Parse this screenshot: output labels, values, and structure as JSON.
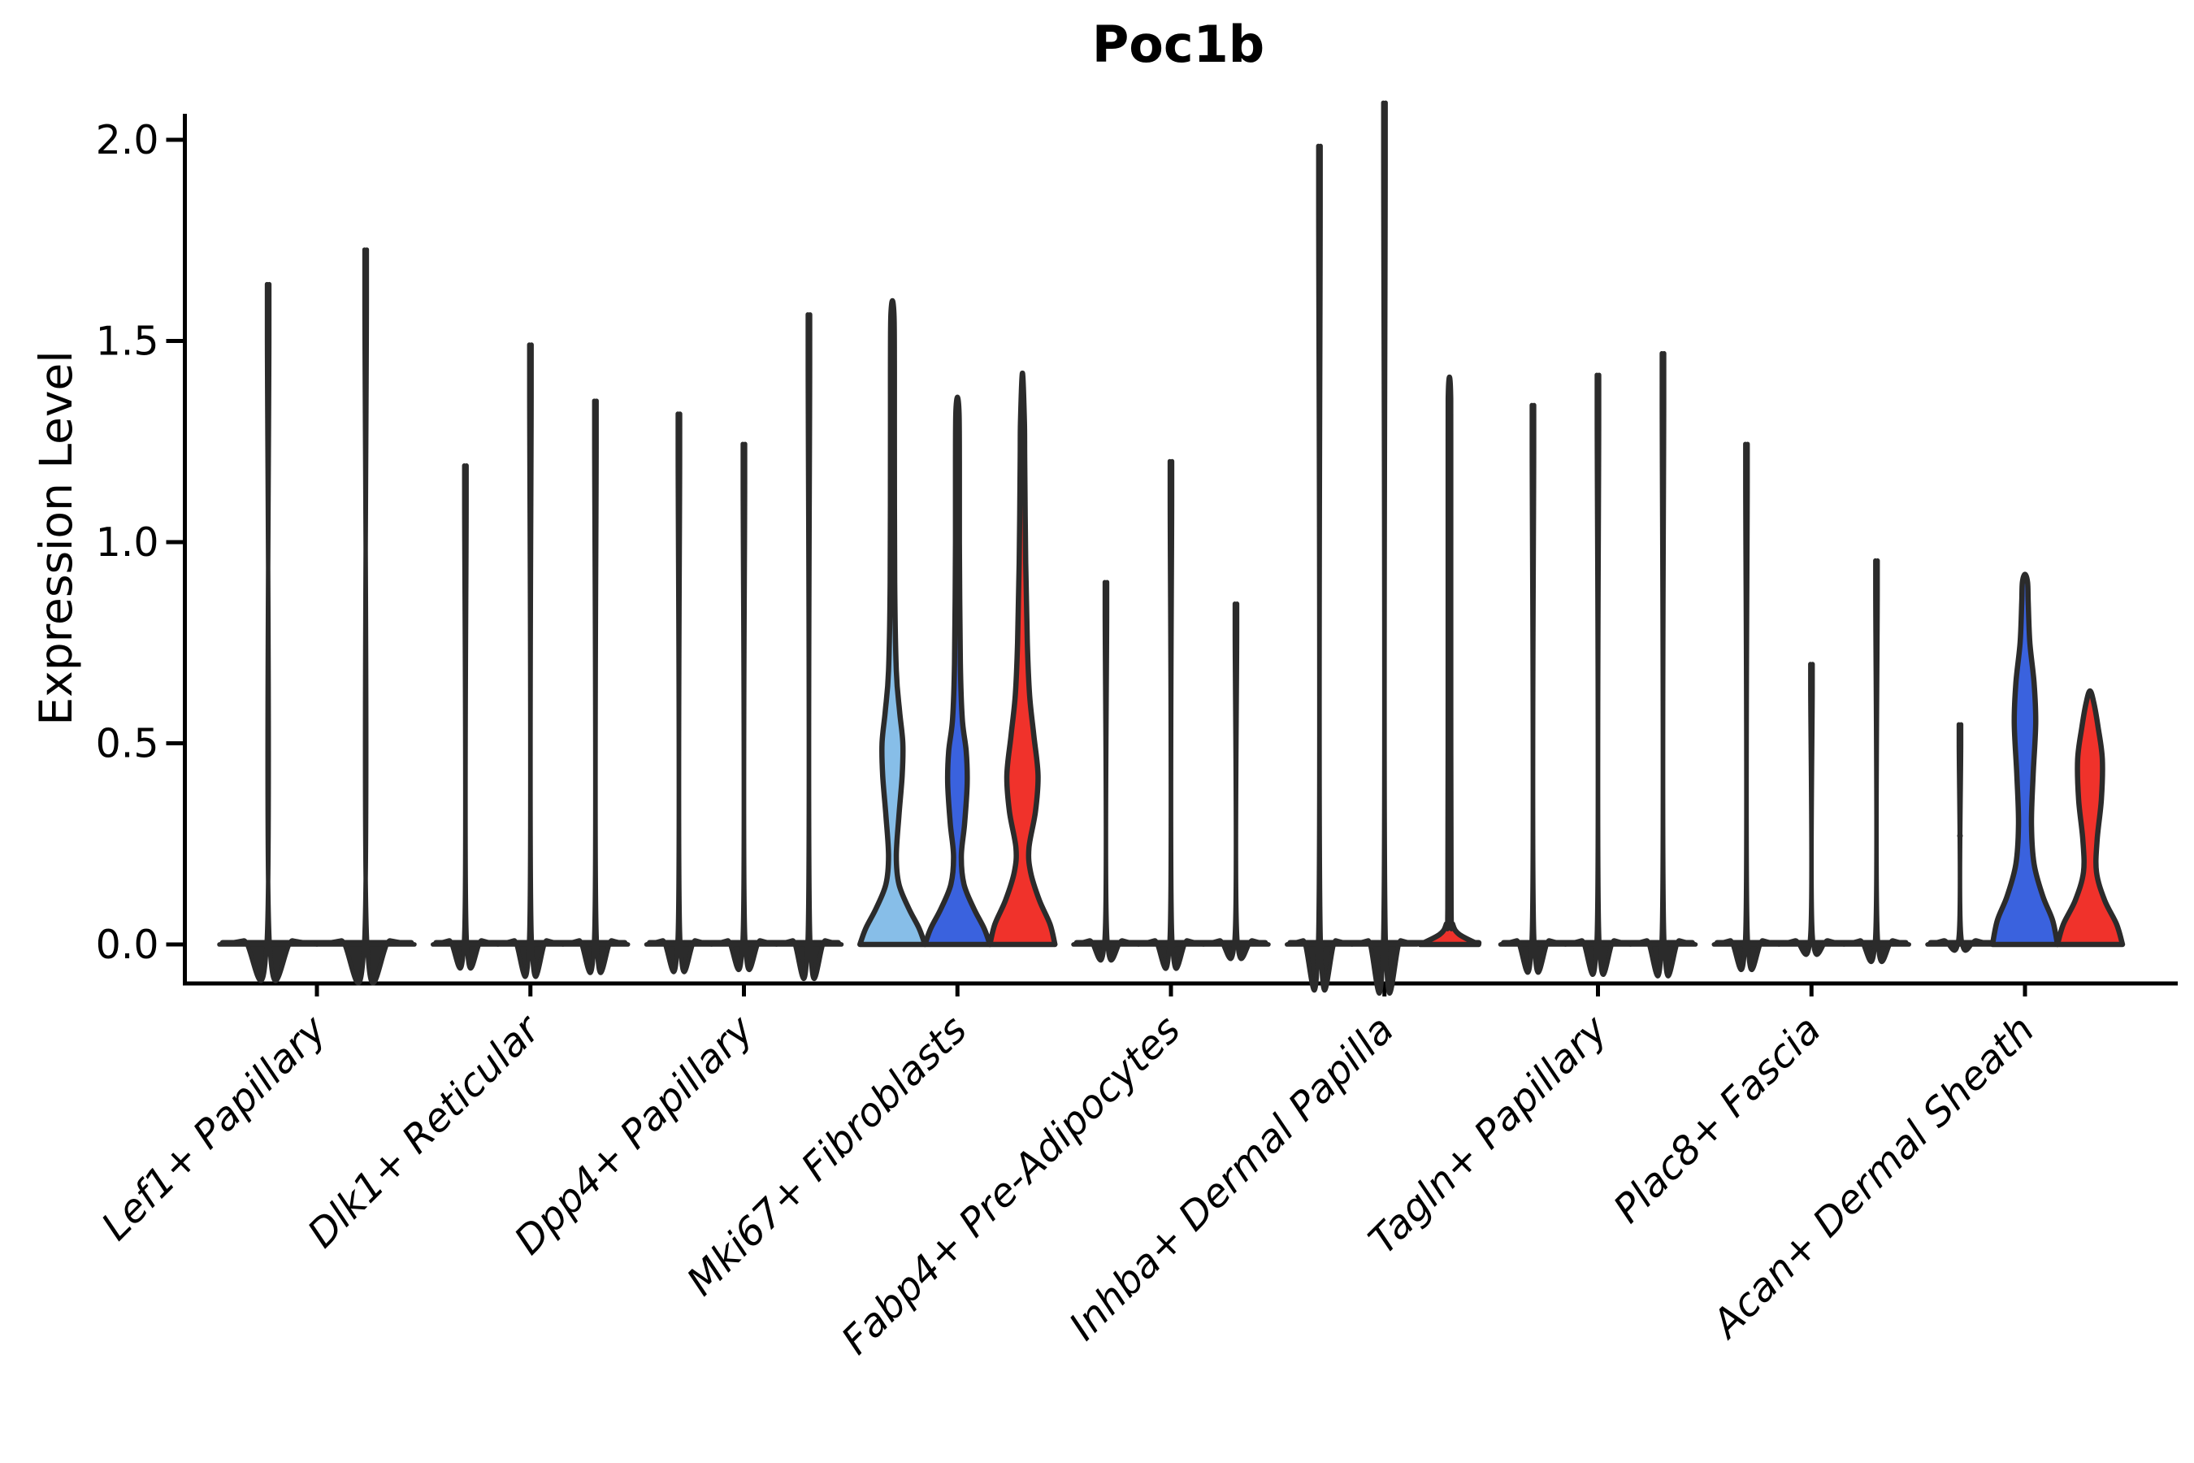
{
  "window": {
    "title": "Poc1b violin plot"
  },
  "chart_data": {
    "type": "violin",
    "title": "Poc1b",
    "xlabel": "",
    "ylabel": "Expression Level",
    "ylim": [
      0,
      2.05
    ],
    "yticks": [
      0.0,
      0.5,
      1.0,
      1.5,
      2.0
    ],
    "ytick_labels": [
      "0.0",
      "0.5",
      "1.0",
      "1.5",
      "2.0"
    ],
    "grid": false,
    "legend_position": "none",
    "x_tick_rotation_deg": 45,
    "colors": {
      "background": "#ffffff",
      "axis": "#000000",
      "outline": "#2b2b2b",
      "split_light_blue": "#87BEE8",
      "split_blue": "#3A62DE",
      "split_red": "#F0322B"
    },
    "categories": [
      {
        "label": "Lef1+ Papillary",
        "violins": [
          {
            "shape": "spike",
            "max": 1.56
          },
          {
            "shape": "spike",
            "max": 1.64
          }
        ]
      },
      {
        "label": "Dlk1+ Reticular",
        "violins": [
          {
            "shape": "spike",
            "max": 1.14
          },
          {
            "shape": "spike",
            "max": 1.42
          },
          {
            "shape": "spike",
            "max": 1.29
          }
        ]
      },
      {
        "label": "Dpp4+ Papillary",
        "violins": [
          {
            "shape": "spike",
            "max": 1.26
          },
          {
            "shape": "spike",
            "max": 1.19
          },
          {
            "shape": "spike",
            "max": 1.49
          }
        ]
      },
      {
        "label": "Mki67+ Fibroblasts",
        "violins": [
          {
            "shape": "shaped",
            "max": 1.6,
            "color": "split_light_blue",
            "profile": [
              [
                0,
                1.0
              ],
              [
                0.04,
                0.82
              ],
              [
                0.09,
                0.5
              ],
              [
                0.15,
                0.2
              ],
              [
                0.22,
                0.12
              ],
              [
                0.32,
                0.2
              ],
              [
                0.42,
                0.3
              ],
              [
                0.5,
                0.32
              ],
              [
                0.58,
                0.22
              ],
              [
                0.68,
                0.12
              ],
              [
                0.9,
                0.07
              ],
              [
                1.3,
                0.06
              ],
              [
                1.45,
                0.06
              ],
              [
                1.56,
                0.05
              ],
              [
                1.6,
                0
              ]
            ]
          },
          {
            "shape": "shaped",
            "max": 1.36,
            "color": "split_blue",
            "profile": [
              [
                0,
                1.0
              ],
              [
                0.04,
                0.82
              ],
              [
                0.09,
                0.5
              ],
              [
                0.15,
                0.2
              ],
              [
                0.22,
                0.12
              ],
              [
                0.3,
                0.22
              ],
              [
                0.4,
                0.3
              ],
              [
                0.48,
                0.27
              ],
              [
                0.56,
                0.15
              ],
              [
                0.7,
                0.09
              ],
              [
                1.0,
                0.06
              ],
              [
                1.2,
                0.06
              ],
              [
                1.32,
                0.05
              ],
              [
                1.36,
                0
              ]
            ]
          },
          {
            "shape": "shaped",
            "max": 1.42,
            "color": "split_red",
            "profile": [
              [
                0,
                1.0
              ],
              [
                0.05,
                0.85
              ],
              [
                0.11,
                0.52
              ],
              [
                0.18,
                0.25
              ],
              [
                0.24,
                0.2
              ],
              [
                0.33,
                0.4
              ],
              [
                0.42,
                0.48
              ],
              [
                0.52,
                0.35
              ],
              [
                0.62,
                0.22
              ],
              [
                0.75,
                0.15
              ],
              [
                0.95,
                0.1
              ],
              [
                1.2,
                0.07
              ],
              [
                1.3,
                0.06
              ],
              [
                1.42,
                0
              ]
            ]
          }
        ]
      },
      {
        "label": "Fabp4+ Pre-Adipocytes",
        "violins": [
          {
            "shape": "spike",
            "max": 0.87
          },
          {
            "shape": "spike",
            "max": 1.15
          },
          {
            "shape": "spike",
            "max": 0.82
          }
        ]
      },
      {
        "label": "Inhba+ Dermal Papilla",
        "violins": [
          {
            "shape": "spike",
            "max": 1.88
          },
          {
            "shape": "spike",
            "max": 1.98
          },
          {
            "shape": "shaped",
            "max": 1.41,
            "color": "split_red",
            "profile": [
              [
                0,
                0.9
              ],
              [
                0.025,
                0.3
              ],
              [
                0.05,
                0.1
              ],
              [
                0.09,
                0.05
              ],
              [
                0.6,
                0.04
              ],
              [
                1.25,
                0.04
              ],
              [
                1.37,
                0.035
              ],
              [
                1.41,
                0
              ]
            ]
          }
        ]
      },
      {
        "label": "Tagln+ Papillary",
        "violins": [
          {
            "shape": "spike",
            "max": 1.28
          },
          {
            "shape": "spike",
            "max": 1.35
          },
          {
            "shape": "spike",
            "max": 1.4
          }
        ]
      },
      {
        "label": "Plac8+ Fascia",
        "violins": [
          {
            "shape": "spike",
            "max": 1.19
          },
          {
            "shape": "spike",
            "max": 0.68
          },
          {
            "shape": "spike",
            "max": 0.92
          }
        ]
      },
      {
        "label": "Acan+ Dermal Sheath",
        "violins": [
          {
            "shape": "spike",
            "max": 0.54,
            "points": [
              0.27,
              0.37,
              0.44,
              0.5,
              0.54
            ]
          },
          {
            "shape": "shaped",
            "max": 0.92,
            "color": "split_blue",
            "profile": [
              [
                0,
                1.0
              ],
              [
                0.06,
                0.85
              ],
              [
                0.12,
                0.55
              ],
              [
                0.2,
                0.28
              ],
              [
                0.3,
                0.2
              ],
              [
                0.42,
                0.25
              ],
              [
                0.55,
                0.33
              ],
              [
                0.65,
                0.28
              ],
              [
                0.75,
                0.15
              ],
              [
                0.85,
                0.1
              ],
              [
                0.9,
                0.08
              ],
              [
                0.92,
                0
              ]
            ]
          },
          {
            "shape": "shaped",
            "max": 0.63,
            "color": "split_red",
            "profile": [
              [
                0,
                1.0
              ],
              [
                0.05,
                0.82
              ],
              [
                0.11,
                0.45
              ],
              [
                0.18,
                0.2
              ],
              [
                0.26,
                0.22
              ],
              [
                0.36,
                0.35
              ],
              [
                0.46,
                0.38
              ],
              [
                0.54,
                0.25
              ],
              [
                0.6,
                0.12
              ],
              [
                0.63,
                0
              ]
            ]
          }
        ]
      }
    ]
  }
}
